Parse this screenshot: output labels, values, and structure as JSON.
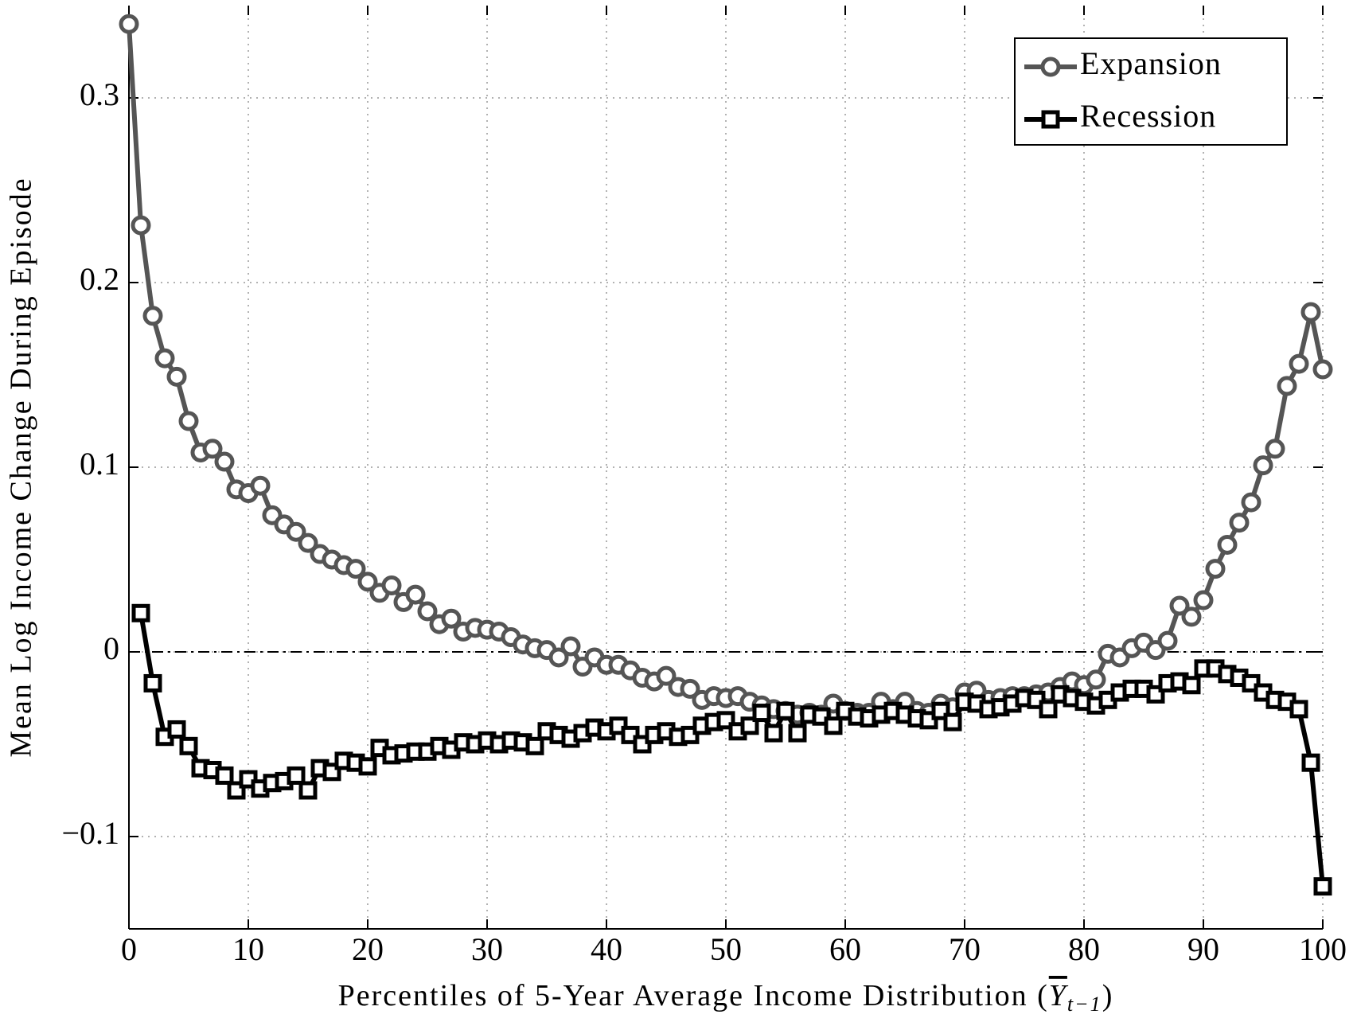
{
  "chart_data": {
    "type": "line",
    "ylabel": "Mean Log Income Change During Episode",
    "xlabel": {
      "text": "Percentiles of 5-Year Average Income Distribution (",
      "symbol": "Y",
      "subscript": "t−1",
      "close": ")"
    },
    "x": [
      0,
      1,
      2,
      3,
      4,
      5,
      6,
      7,
      8,
      9,
      10,
      11,
      12,
      13,
      14,
      15,
      16,
      17,
      18,
      19,
      20,
      21,
      22,
      23,
      24,
      25,
      26,
      27,
      28,
      29,
      30,
      31,
      32,
      33,
      34,
      35,
      36,
      37,
      38,
      39,
      40,
      41,
      42,
      43,
      44,
      45,
      46,
      47,
      48,
      49,
      50,
      51,
      52,
      53,
      54,
      55,
      56,
      57,
      58,
      59,
      60,
      61,
      62,
      63,
      64,
      65,
      66,
      67,
      68,
      69,
      70,
      71,
      72,
      73,
      74,
      75,
      76,
      77,
      78,
      79,
      80,
      81,
      82,
      83,
      84,
      85,
      86,
      87,
      88,
      89,
      90,
      91,
      92,
      93,
      94,
      95,
      96,
      97,
      98,
      99,
      100
    ],
    "series": [
      {
        "name": "Expansion",
        "color": "#555555",
        "marker": "circle",
        "values": [
          0.34,
          0.231,
          0.182,
          0.159,
          0.149,
          0.125,
          0.108,
          0.11,
          0.103,
          0.088,
          0.086,
          0.09,
          0.074,
          0.069,
          0.065,
          0.059,
          0.053,
          0.05,
          0.047,
          0.045,
          0.038,
          0.032,
          0.036,
          0.027,
          0.031,
          0.022,
          0.015,
          0.018,
          0.011,
          0.013,
          0.012,
          0.011,
          0.008,
          0.004,
          0.002,
          0.001,
          -0.003,
          0.003,
          -0.008,
          -0.003,
          -0.007,
          -0.007,
          -0.01,
          -0.014,
          -0.016,
          -0.013,
          -0.019,
          -0.02,
          -0.026,
          -0.024,
          -0.025,
          -0.024,
          -0.027,
          -0.029,
          -0.031,
          -0.032,
          -0.034,
          -0.033,
          -0.034,
          -0.028,
          -0.032,
          -0.033,
          -0.033,
          -0.027,
          -0.031,
          -0.027,
          -0.032,
          -0.033,
          -0.028,
          -0.03,
          -0.022,
          -0.021,
          -0.026,
          -0.025,
          -0.024,
          -0.024,
          -0.023,
          -0.022,
          -0.019,
          -0.016,
          -0.018,
          -0.015,
          -0.001,
          -0.003,
          0.002,
          0.005,
          0.001,
          0.006,
          0.025,
          0.019,
          0.028,
          0.045,
          0.058,
          0.07,
          0.081,
          0.101,
          0.11,
          0.144,
          0.156,
          0.184,
          0.153
        ]
      },
      {
        "name": "Recession",
        "color": "#000000",
        "marker": "square",
        "values": [
          null,
          0.021,
          -0.017,
          -0.046,
          -0.042,
          -0.051,
          -0.063,
          -0.064,
          -0.067,
          -0.075,
          -0.069,
          -0.074,
          -0.071,
          -0.07,
          -0.067,
          -0.075,
          -0.063,
          -0.065,
          -0.059,
          -0.06,
          -0.062,
          -0.052,
          -0.056,
          -0.055,
          -0.054,
          -0.054,
          -0.051,
          -0.053,
          -0.049,
          -0.05,
          -0.048,
          -0.05,
          -0.048,
          -0.049,
          -0.051,
          -0.043,
          -0.045,
          -0.047,
          -0.044,
          -0.041,
          -0.043,
          -0.04,
          -0.045,
          -0.05,
          -0.045,
          -0.043,
          -0.046,
          -0.045,
          -0.04,
          -0.038,
          -0.037,
          -0.043,
          -0.04,
          -0.033,
          -0.044,
          -0.032,
          -0.044,
          -0.034,
          -0.035,
          -0.04,
          -0.032,
          -0.035,
          -0.036,
          -0.034,
          -0.032,
          -0.034,
          -0.036,
          -0.037,
          -0.032,
          -0.038,
          -0.027,
          -0.028,
          -0.031,
          -0.03,
          -0.028,
          -0.025,
          -0.026,
          -0.031,
          -0.023,
          -0.025,
          -0.027,
          -0.029,
          -0.026,
          -0.022,
          -0.02,
          -0.02,
          -0.023,
          -0.017,
          -0.016,
          -0.018,
          -0.009,
          -0.009,
          -0.012,
          -0.014,
          -0.017,
          -0.022,
          -0.026,
          -0.027,
          -0.031,
          -0.06,
          -0.127
        ]
      }
    ],
    "xlim": [
      0,
      100
    ],
    "xticks": [
      0,
      10,
      20,
      30,
      40,
      50,
      60,
      70,
      80,
      90,
      100
    ],
    "ylim": [
      -0.15,
      0.35
    ],
    "yticks": [
      {
        "value": -0.1,
        "label": "−0.1"
      },
      0,
      0.1,
      0.2,
      0.3
    ],
    "grid": true,
    "zero_line": true,
    "legend": "upper right"
  }
}
